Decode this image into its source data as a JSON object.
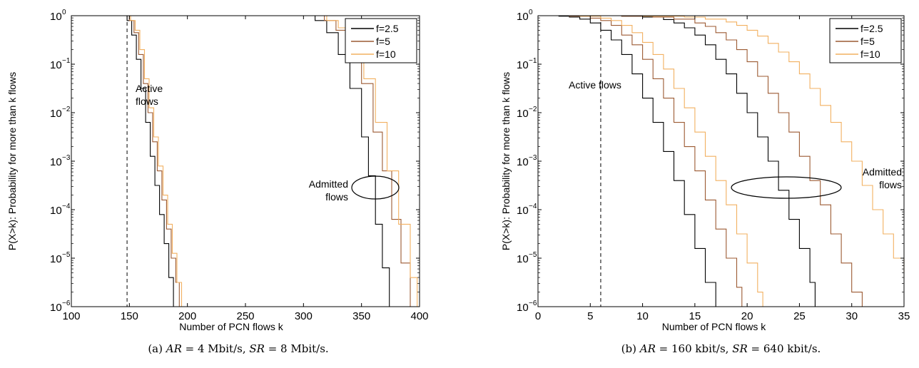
{
  "chart_data": [
    {
      "type": "line",
      "caption": {
        "prefix": "(a) ",
        "ar_label": "AR",
        "ar_value": " = 4 Mbit/s, ",
        "sr_label": "SR",
        "sr_value": " = 8 Mbit/s."
      },
      "xlabel": "Number of PCN flows k",
      "ylabel": "P(X>k): Probability for more than k flows",
      "xlim": [
        100,
        400
      ],
      "ylim_log10": [
        -6,
        0
      ],
      "y_scale": "log",
      "xticks": [
        100,
        150,
        200,
        250,
        300,
        350,
        400
      ],
      "xtick_labels": [
        "100",
        "150",
        "200",
        "250",
        "300",
        "350",
        "400"
      ],
      "ytick_exponents": [
        "0",
        "−1",
        "−2",
        "−3",
        "−4",
        "−5",
        "−6"
      ],
      "ytick_base": "10",
      "vertical_dashed_x": 148,
      "legend_position": "top-right",
      "legend": [
        "f=2.5",
        "f=5",
        "f=10"
      ],
      "colors": [
        "#000000",
        "#9c5a32",
        "#f2b060"
      ],
      "annotations": {
        "active": [
          "Active",
          "flows"
        ],
        "admitted": [
          "Admitted",
          "flows"
        ]
      },
      "series": [
        {
          "name": "f=2.5",
          "active": [
            [
              140,
              0
            ],
            [
              148,
              -0.1
            ],
            [
              152,
              -0.4
            ],
            [
              156,
              -0.9
            ],
            [
              160,
              -1.5
            ],
            [
              164,
              -2.2
            ],
            [
              168,
              -2.9
            ],
            [
              172,
              -3.5
            ],
            [
              176,
              -4.1
            ],
            [
              180,
              -4.7
            ],
            [
              184,
              -5.4
            ],
            [
              188,
              -6
            ]
          ],
          "admitted": [
            [
              100,
              0
            ],
            [
              300,
              0
            ],
            [
              310,
              -0.1
            ],
            [
              320,
              -0.35
            ],
            [
              330,
              -0.8
            ],
            [
              340,
              -1.5
            ],
            [
              350,
              -2.5
            ],
            [
              356,
              -3.3
            ],
            [
              362,
              -4.3
            ],
            [
              368,
              -5.2
            ],
            [
              374,
              -6
            ]
          ]
        },
        {
          "name": "f=5",
          "active": [
            [
              142,
              0
            ],
            [
              150,
              -0.1
            ],
            [
              154,
              -0.35
            ],
            [
              158,
              -0.8
            ],
            [
              162,
              -1.4
            ],
            [
              166,
              -2.0
            ],
            [
              170,
              -2.6
            ],
            [
              174,
              -3.2
            ],
            [
              178,
              -3.8
            ],
            [
              182,
              -4.4
            ],
            [
              186,
              -5.0
            ],
            [
              190,
              -5.5
            ],
            [
              193,
              -6
            ]
          ],
          "admitted": [
            [
              100,
              0
            ],
            [
              308,
              0
            ],
            [
              318,
              -0.1
            ],
            [
              328,
              -0.3
            ],
            [
              340,
              -0.8
            ],
            [
              350,
              -1.4
            ],
            [
              360,
              -2.4
            ],
            [
              368,
              -3.2
            ],
            [
              376,
              -4.2
            ],
            [
              384,
              -5.1
            ],
            [
              392,
              -6
            ]
          ]
        },
        {
          "name": "f=10",
          "active": [
            [
              143,
              0
            ],
            [
              151,
              -0.1
            ],
            [
              155,
              -0.3
            ],
            [
              159,
              -0.7
            ],
            [
              163,
              -1.3
            ],
            [
              167,
              -1.9
            ],
            [
              171,
              -2.5
            ],
            [
              175,
              -3.1
            ],
            [
              179,
              -3.7
            ],
            [
              183,
              -4.3
            ],
            [
              187,
              -4.9
            ],
            [
              191,
              -5.5
            ],
            [
              195,
              -6
            ]
          ],
          "admitted": [
            [
              100,
              0
            ],
            [
              310,
              0
            ],
            [
              320,
              -0.1
            ],
            [
              330,
              -0.25
            ],
            [
              342,
              -0.7
            ],
            [
              352,
              -1.3
            ],
            [
              362,
              -2.2
            ],
            [
              372,
              -3.2
            ],
            [
              382,
              -4.3
            ],
            [
              392,
              -5.4
            ],
            [
              398,
              -6
            ]
          ]
        }
      ]
    },
    {
      "type": "line",
      "caption": {
        "prefix": "(b) ",
        "ar_label": "AR",
        "ar_value": " = 160 kbit/s, ",
        "sr_label": "SR",
        "sr_value": " = 640 kbit/s."
      },
      "xlabel": "Number of PCN flows k",
      "ylabel": "P(X>k): Probability for more than k flows",
      "xlim": [
        0,
        35
      ],
      "ylim_log10": [
        -6,
        0
      ],
      "y_scale": "log",
      "xticks": [
        0,
        5,
        10,
        15,
        20,
        25,
        30,
        35
      ],
      "xtick_labels": [
        "0",
        "5",
        "10",
        "15",
        "20",
        "25",
        "30",
        "35"
      ],
      "ytick_exponents": [
        "0",
        "−1",
        "−2",
        "−3",
        "−4",
        "−5",
        "−6"
      ],
      "ytick_base": "10",
      "vertical_dashed_x": 6,
      "legend_position": "top-right",
      "legend": [
        "f=2.5",
        "f=5",
        "f=10"
      ],
      "colors": [
        "#000000",
        "#9c5a32",
        "#f2b060"
      ],
      "annotations": {
        "active": [
          "Active flows"
        ],
        "admitted": [
          "Admitted",
          "flows"
        ]
      },
      "series": [
        {
          "name": "f=2.5",
          "active": [
            [
              0,
              0
            ],
            [
              1,
              0
            ],
            [
              2,
              -0.01
            ],
            [
              3,
              -0.03
            ],
            [
              4,
              -0.07
            ],
            [
              5,
              -0.15
            ],
            [
              6,
              -0.3
            ],
            [
              7,
              -0.5
            ],
            [
              8,
              -0.8
            ],
            [
              9,
              -1.2
            ],
            [
              10,
              -1.7
            ],
            [
              11,
              -2.2
            ],
            [
              12,
              -2.8
            ],
            [
              13,
              -3.4
            ],
            [
              14,
              -4.1
            ],
            [
              15,
              -4.8
            ],
            [
              16,
              -5.5
            ],
            [
              17,
              -6
            ]
          ],
          "admitted": [
            [
              0,
              0
            ],
            [
              5,
              0
            ],
            [
              8,
              -0.01
            ],
            [
              10,
              -0.03
            ],
            [
              12,
              -0.08
            ],
            [
              13,
              -0.15
            ],
            [
              14,
              -0.25
            ],
            [
              15,
              -0.4
            ],
            [
              16,
              -0.6
            ],
            [
              17,
              -0.9
            ],
            [
              18,
              -1.2
            ],
            [
              19,
              -1.6
            ],
            [
              20,
              -2.0
            ],
            [
              21,
              -2.5
            ],
            [
              22,
              -3.0
            ],
            [
              23,
              -3.6
            ],
            [
              24,
              -4.2
            ],
            [
              25,
              -4.8
            ],
            [
              26,
              -5.5
            ],
            [
              26.5,
              -6
            ]
          ]
        },
        {
          "name": "f=5",
          "active": [
            [
              0,
              0
            ],
            [
              3,
              -0.01
            ],
            [
              5,
              -0.05
            ],
            [
              6,
              -0.1
            ],
            [
              7,
              -0.2
            ],
            [
              8,
              -0.4
            ],
            [
              9,
              -0.6
            ],
            [
              10,
              -0.9
            ],
            [
              11,
              -1.3
            ],
            [
              12,
              -1.7
            ],
            [
              13,
              -2.2
            ],
            [
              14,
              -2.7
            ],
            [
              15,
              -3.2
            ],
            [
              16,
              -3.8
            ],
            [
              17,
              -4.4
            ],
            [
              18,
              -5.0
            ],
            [
              19,
              -5.6
            ],
            [
              19.5,
              -6
            ]
          ],
          "admitted": [
            [
              0,
              0
            ],
            [
              8,
              -0.01
            ],
            [
              11,
              -0.03
            ],
            [
              13,
              -0.07
            ],
            [
              15,
              -0.15
            ],
            [
              16,
              -0.22
            ],
            [
              17,
              -0.35
            ],
            [
              18,
              -0.5
            ],
            [
              19,
              -0.7
            ],
            [
              20,
              -0.95
            ],
            [
              21,
              -1.25
            ],
            [
              22,
              -1.6
            ],
            [
              23,
              -2.0
            ],
            [
              24,
              -2.4
            ],
            [
              25,
              -2.9
            ],
            [
              26,
              -3.4
            ],
            [
              27,
              -3.9
            ],
            [
              28,
              -4.5
            ],
            [
              29,
              -5.1
            ],
            [
              30,
              -5.7
            ],
            [
              31,
              -6
            ]
          ]
        },
        {
          "name": "f=10",
          "active": [
            [
              0,
              0
            ],
            [
              4,
              -0.01
            ],
            [
              6,
              -0.05
            ],
            [
              7,
              -0.1
            ],
            [
              8,
              -0.2
            ],
            [
              9,
              -0.35
            ],
            [
              10,
              -0.55
            ],
            [
              11,
              -0.8
            ],
            [
              12,
              -1.1
            ],
            [
              13,
              -1.5
            ],
            [
              14,
              -1.9
            ],
            [
              15,
              -2.4
            ],
            [
              16,
              -2.9
            ],
            [
              17,
              -3.4
            ],
            [
              18,
              -3.9
            ],
            [
              19,
              -4.5
            ],
            [
              20,
              -5.1
            ],
            [
              21,
              -5.7
            ],
            [
              21.5,
              -6
            ]
          ],
          "admitted": [
            [
              0,
              0
            ],
            [
              10,
              -0.01
            ],
            [
              14,
              -0.03
            ],
            [
              16,
              -0.07
            ],
            [
              18,
              -0.13
            ],
            [
              19,
              -0.2
            ],
            [
              20,
              -0.3
            ],
            [
              21,
              -0.42
            ],
            [
              22,
              -0.57
            ],
            [
              23,
              -0.75
            ],
            [
              24,
              -0.95
            ],
            [
              25,
              -1.2
            ],
            [
              26,
              -1.5
            ],
            [
              27,
              -1.85
            ],
            [
              28,
              -2.2
            ],
            [
              29,
              -2.6
            ],
            [
              30,
              -3.0
            ],
            [
              31,
              -3.5
            ],
            [
              32,
              -4.0
            ],
            [
              33,
              -4.5
            ],
            [
              34,
              -5.0
            ],
            [
              35,
              -5.3
            ]
          ]
        }
      ]
    }
  ]
}
